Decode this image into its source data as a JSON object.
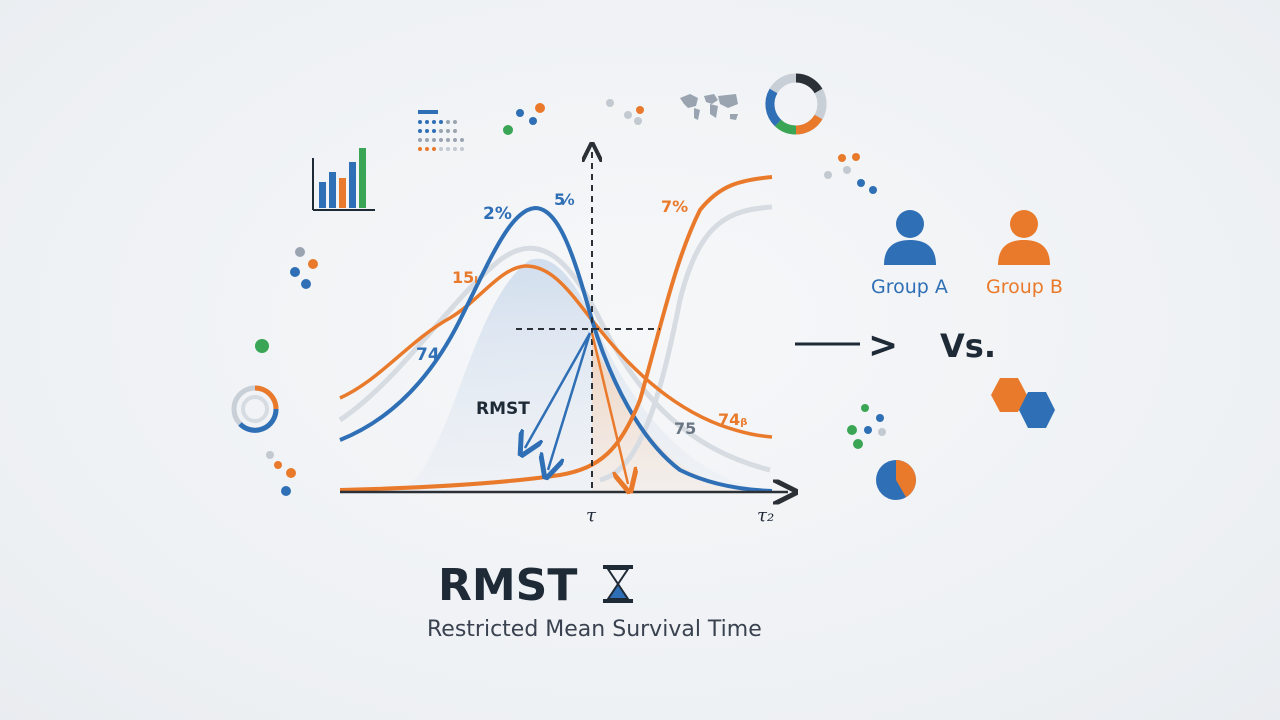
{
  "title": "RMST",
  "subtitle": "Restricted Mean Survival Time",
  "groups": [
    {
      "label": "Group A",
      "color": "#2f6fb5"
    },
    {
      "label": "Group B",
      "color": "#ea7a2b"
    }
  ],
  "comparison": {
    "arrow": ">",
    "vs": "Vs."
  },
  "curve_labels": {
    "blue_peak": "2%",
    "blue_top": "5⁄₀",
    "orange_peak": "15ₗ",
    "blue_left": "74",
    "orange_right_top": "7%",
    "rmst": "RMST",
    "right_gray": "75",
    "orange_right_tail": "74ᵦ"
  },
  "axis": {
    "tau": "τ",
    "tau2": "τ₂"
  },
  "colors": {
    "blue": "#2f6fb5",
    "orange": "#ea7a2b",
    "green": "#3aa655",
    "gray": "#c9cfd6",
    "dark": "#2b2f36"
  },
  "icons": [
    "bar-chart-icon",
    "data-grid-icon",
    "world-map-icon",
    "donut-chart-icon",
    "ring-chart-icon",
    "pie-chart-icon",
    "hexagon-icon",
    "hourglass-icon",
    "person-icon"
  ]
}
